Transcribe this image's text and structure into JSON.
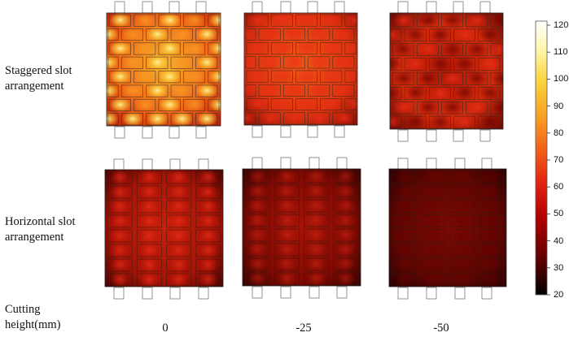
{
  "row_labels": [
    {
      "line1": "Staggered slot",
      "line2": "arrangement"
    },
    {
      "line1": "Horizontal slot",
      "line2": "arrangement"
    }
  ],
  "axis_label": {
    "line1": "Cutting",
    "line2": "height(mm)"
  },
  "columns": [
    "0",
    "-25",
    "-50"
  ],
  "colorbar": {
    "ticks": [
      "120",
      "110",
      "100",
      "90",
      "80",
      "70",
      "60",
      "50",
      "40",
      "30",
      "20"
    ],
    "min": 20,
    "max": 120,
    "colors": [
      "#000000",
      "#5a0000",
      "#b00000",
      "#e02010",
      "#f25a18",
      "#f89a22",
      "#fcd43a",
      "#fff8b0",
      "#ffffff"
    ]
  },
  "panels": [
    {
      "row": "staggered",
      "column": "0",
      "mean_level": 95
    },
    {
      "row": "staggered",
      "column": "-25",
      "mean_level": 72
    },
    {
      "row": "staggered",
      "column": "-50",
      "mean_level": 55
    },
    {
      "row": "horizontal",
      "column": "0",
      "mean_level": 50
    },
    {
      "row": "horizontal",
      "column": "-25",
      "mean_level": 40
    },
    {
      "row": "horizontal",
      "column": "-50",
      "mean_level": 33
    }
  ]
}
